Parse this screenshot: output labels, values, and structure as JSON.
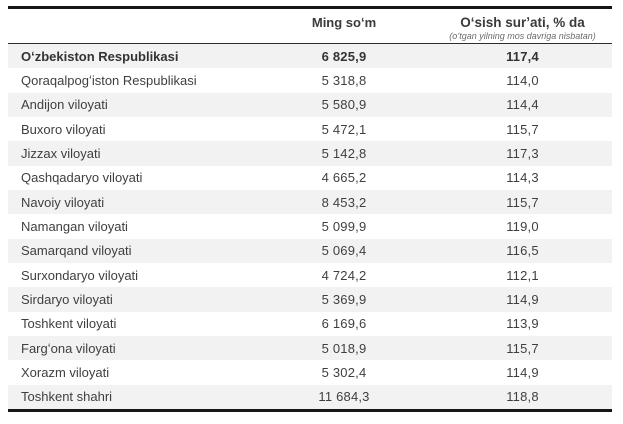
{
  "table": {
    "columns": {
      "region_label": "",
      "col2_label": "Ming soʻm",
      "col3_label": "Oʻsish surʼati, % da",
      "col3_sublabel": "(oʻtgan yilning mos davriga nisbatan)"
    },
    "rows": [
      {
        "region": "Oʻzbekiston Respublikasi",
        "ming_som": "6 825,9",
        "growth": "117,4",
        "bold": true
      },
      {
        "region": "Qoraqalpogʻiston Respublikasi",
        "ming_som": "5 318,8",
        "growth": "114,0",
        "bold": false
      },
      {
        "region": "Andijon viloyati",
        "ming_som": "5 580,9",
        "growth": "114,4",
        "bold": false
      },
      {
        "region": "Buxoro viloyati",
        "ming_som": "5 472,1",
        "growth": "115,7",
        "bold": false
      },
      {
        "region": "Jizzax viloyati",
        "ming_som": "5 142,8",
        "growth": "117,3",
        "bold": false
      },
      {
        "region": "Qashqadaryo viloyati",
        "ming_som": "4 665,2",
        "growth": "114,3",
        "bold": false
      },
      {
        "region": "Navoiy viloyati",
        "ming_som": "8 453,2",
        "growth": "115,7",
        "bold": false
      },
      {
        "region": "Namangan viloyati",
        "ming_som": "5 099,9",
        "growth": "119,0",
        "bold": false
      },
      {
        "region": "Samarqand viloyati",
        "ming_som": "5 069,4",
        "growth": "116,5",
        "bold": false
      },
      {
        "region": "Surxondaryo viloyati",
        "ming_som": "4 724,2",
        "growth": "112,1",
        "bold": false
      },
      {
        "region": "Sirdaryo viloyati",
        "ming_som": "5 369,9",
        "growth": "114,9",
        "bold": false
      },
      {
        "region": "Toshkent viloyati",
        "ming_som": "6 169,6",
        "growth": "113,9",
        "bold": false
      },
      {
        "region": "Fargʻona viloyati",
        "ming_som": "5 018,9",
        "growth": "115,7",
        "bold": false
      },
      {
        "region": "Xorazm viloyati",
        "ming_som": "5 302,4",
        "growth": "114,9",
        "bold": false
      },
      {
        "region": "Toshkent shahri",
        "ming_som": "11 684,3",
        "growth": "118,8",
        "bold": false
      }
    ]
  },
  "colors": {
    "stripe": "#f2f2f2",
    "heavy_border": "#161616",
    "header_underline": "#2e2e2e",
    "text": "#3f3f3f",
    "subtitle_text": "#6b6b6b"
  },
  "chart_data": {
    "type": "table",
    "title": "",
    "columns": [
      "",
      "Ming soʻm",
      "Oʻsish surʼati, % da (oʻtgan yilning mos davriga nisbatan)"
    ],
    "rows": [
      [
        "Oʻzbekiston Respublikasi",
        6825.9,
        117.4
      ],
      [
        "Qoraqalpogʻiston Respublikasi",
        5318.8,
        114.0
      ],
      [
        "Andijon viloyati",
        5580.9,
        114.4
      ],
      [
        "Buxoro viloyati",
        5472.1,
        115.7
      ],
      [
        "Jizzax viloyati",
        5142.8,
        117.3
      ],
      [
        "Qashqadaryo viloyati",
        4665.2,
        114.3
      ],
      [
        "Navoiy viloyati",
        8453.2,
        115.7
      ],
      [
        "Namangan viloyati",
        5099.9,
        119.0
      ],
      [
        "Samarqand viloyati",
        5069.4,
        116.5
      ],
      [
        "Surxondaryo viloyati",
        4724.2,
        112.1
      ],
      [
        "Sirdaryo viloyati",
        5369.9,
        114.9
      ],
      [
        "Toshkent viloyati",
        6169.6,
        113.9
      ],
      [
        "Fargʻona viloyati",
        5018.9,
        115.7
      ],
      [
        "Xorazm viloyati",
        5302.4,
        114.9
      ],
      [
        "Toshkent shahri",
        11684.3,
        118.8
      ]
    ]
  }
}
